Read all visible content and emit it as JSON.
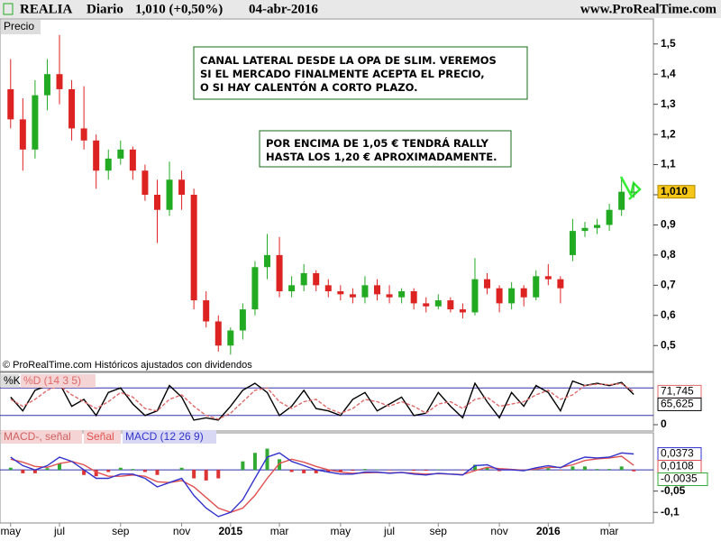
{
  "header": {
    "symbol": "REALIA",
    "period": "Diario",
    "price": "1,010 (+0,50%)",
    "date": "04-abr-2016",
    "site": "www.ProRealTime.com"
  },
  "chart_data": [
    {
      "type": "candlestick",
      "title": "Precio",
      "footer": "© ProRealTime.com  Históricos ajustados con dividendos",
      "annotations": [
        [
          "CANAL LATERAL DESDE LA OPA DE SLIM. VEREMOS",
          "SI EL MERCADO FINALMENTE ACEPTA EL PRECIO,",
          "O SI HAY CALENTÓN A CORTO PLAZO."
        ],
        [
          "POR ENCIMA DE 1,05 € TENDRÁ RALLY",
          "HASTA LOS 1,20 € APROXIMADAMENTE."
        ]
      ],
      "categories": [
        "may",
        null,
        null,
        null,
        "jul",
        null,
        null,
        null,
        null,
        "sep",
        null,
        null,
        null,
        null,
        "nov",
        null,
        null,
        null,
        "2015",
        null,
        null,
        null,
        "mar",
        null,
        null,
        null,
        null,
        "may",
        null,
        null,
        null,
        "jul",
        null,
        null,
        null,
        "sep",
        null,
        null,
        null,
        null,
        "nov",
        null,
        null,
        null,
        "2016",
        null,
        null,
        null,
        null,
        "mar",
        null,
        null
      ],
      "open": [
        1.35,
        1.25,
        1.15,
        1.33,
        1.4,
        1.35,
        1.22,
        1.18,
        1.08,
        1.12,
        1.15,
        1.08,
        1.0,
        0.95,
        1.05,
        1.0,
        0.65,
        0.58,
        0.5,
        0.55,
        0.62,
        0.76,
        0.8,
        0.68,
        0.7,
        0.74,
        0.7,
        0.68,
        0.67,
        0.66,
        0.7,
        0.67,
        0.66,
        0.68,
        0.64,
        0.63,
        0.65,
        0.62,
        0.61,
        0.72,
        0.69,
        0.64,
        0.69,
        0.66,
        0.73,
        0.72,
        0.8,
        0.88,
        0.89,
        0.9,
        0.95,
        1.01
      ],
      "high": [
        1.45,
        1.32,
        1.38,
        1.45,
        1.53,
        1.38,
        1.36,
        1.2,
        1.15,
        1.18,
        1.16,
        1.1,
        1.05,
        1.11,
        1.08,
        1.02,
        0.68,
        0.6,
        0.56,
        0.64,
        0.78,
        0.87,
        0.86,
        0.73,
        0.77,
        0.75,
        0.72,
        0.7,
        0.69,
        0.73,
        0.72,
        0.7,
        0.69,
        0.69,
        0.66,
        0.67,
        0.66,
        0.64,
        0.79,
        0.74,
        0.7,
        0.71,
        0.7,
        0.75,
        0.77,
        0.73,
        0.92,
        0.91,
        0.92,
        0.97,
        1.05,
        1.04
      ],
      "low": [
        1.22,
        1.08,
        1.12,
        1.28,
        1.3,
        1.18,
        1.15,
        1.02,
        1.05,
        1.1,
        1.05,
        0.98,
        0.84,
        0.93,
        0.95,
        0.62,
        0.56,
        0.48,
        0.47,
        0.52,
        0.6,
        0.72,
        0.66,
        0.66,
        0.68,
        0.68,
        0.66,
        0.65,
        0.64,
        0.64,
        0.65,
        0.64,
        0.64,
        0.62,
        0.61,
        0.62,
        0.61,
        0.59,
        0.6,
        0.67,
        0.61,
        0.62,
        0.63,
        0.65,
        0.7,
        0.64,
        0.78,
        0.86,
        0.87,
        0.88,
        0.93,
        0.99
      ],
      "close": [
        1.25,
        1.15,
        1.33,
        1.4,
        1.35,
        1.22,
        1.18,
        1.08,
        1.12,
        1.15,
        1.08,
        1.0,
        0.95,
        1.05,
        1.0,
        0.65,
        0.58,
        0.5,
        0.55,
        0.62,
        0.76,
        0.8,
        0.68,
        0.7,
        0.74,
        0.7,
        0.68,
        0.67,
        0.66,
        0.7,
        0.67,
        0.66,
        0.68,
        0.64,
        0.63,
        0.65,
        0.62,
        0.61,
        0.72,
        0.69,
        0.64,
        0.69,
        0.66,
        0.73,
        0.72,
        0.69,
        0.88,
        0.89,
        0.9,
        0.95,
        1.01,
        1.01
      ],
      "close_labels": [
        null,
        null,
        null,
        null,
        null,
        null,
        null,
        null,
        null,
        null,
        null,
        null,
        null,
        null,
        null,
        null,
        null,
        null,
        null,
        null,
        null,
        null,
        null,
        null,
        null,
        null,
        null,
        null,
        null,
        null,
        null,
        null,
        null,
        null,
        null,
        null,
        null,
        null,
        null,
        null,
        null,
        null,
        null,
        null,
        null,
        null,
        null,
        null,
        null,
        null,
        null,
        "1,010"
      ],
      "up_color": "#22aa22",
      "down_color": "#dd2222",
      "label_color": "#f5c518",
      "ylim": [
        0.42,
        1.58
      ],
      "yticks": [
        {
          "value": 0.5,
          "label": "0,5"
        },
        {
          "value": 0.6,
          "label": "0,6"
        },
        {
          "value": 0.7,
          "label": "0,7"
        },
        {
          "value": 0.8,
          "label": "0,8"
        },
        {
          "value": 0.9,
          "label": "0,9"
        },
        {
          "value": 1.0,
          "label": "1"
        },
        {
          "value": 1.1,
          "label": "1,1"
        },
        {
          "value": 1.2,
          "label": "1,2"
        },
        {
          "value": 1.3,
          "label": "1,3"
        },
        {
          "value": 1.4,
          "label": "1,4"
        },
        {
          "value": 1.5,
          "label": "1,5"
        }
      ]
    },
    {
      "type": "line",
      "ylim": [
        0,
        100
      ],
      "yticks": [
        0
      ],
      "levels": [
        80,
        20
      ],
      "level_color": "#3333aa",
      "series": [
        {
          "name": "%K",
          "color": "#000000",
          "values": [
            60,
            30,
            75,
            85,
            90,
            40,
            55,
            20,
            70,
            80,
            45,
            20,
            30,
            85,
            60,
            10,
            15,
            10,
            40,
            75,
            90,
            70,
            20,
            40,
            75,
            35,
            30,
            20,
            55,
            70,
            30,
            45,
            60,
            20,
            25,
            70,
            40,
            15,
            90,
            50,
            15,
            70,
            40,
            85,
            70,
            30,
            95,
            85,
            90,
            85,
            92,
            65.625
          ],
          "value_labels": [
            null,
            null,
            null,
            null,
            null,
            null,
            null,
            null,
            null,
            null,
            null,
            null,
            null,
            null,
            null,
            null,
            null,
            null,
            null,
            null,
            null,
            null,
            null,
            null,
            null,
            null,
            null,
            null,
            null,
            null,
            null,
            null,
            null,
            null,
            null,
            null,
            null,
            null,
            null,
            null,
            null,
            null,
            null,
            null,
            null,
            null,
            null,
            null,
            null,
            null,
            null,
            "65,625"
          ]
        },
        {
          "name": "%D (14 3 5)",
          "color": "#e06a6a",
          "dashed": true,
          "values": [
            55,
            40,
            55,
            75,
            85,
            65,
            50,
            35,
            50,
            70,
            60,
            35,
            30,
            55,
            65,
            40,
            20,
            12,
            25,
            50,
            75,
            80,
            50,
            35,
            50,
            55,
            35,
            25,
            35,
            55,
            50,
            40,
            50,
            40,
            25,
            45,
            50,
            35,
            55,
            60,
            40,
            45,
            50,
            65,
            75,
            55,
            65,
            85,
            88,
            87,
            89,
            71.745
          ],
          "value_labels": [
            null,
            null,
            null,
            null,
            null,
            null,
            null,
            null,
            null,
            null,
            null,
            null,
            null,
            null,
            null,
            null,
            null,
            null,
            null,
            null,
            null,
            null,
            null,
            null,
            null,
            null,
            null,
            null,
            null,
            null,
            null,
            null,
            null,
            null,
            null,
            null,
            null,
            null,
            null,
            null,
            null,
            null,
            null,
            null,
            null,
            null,
            null,
            null,
            null,
            null,
            null,
            "71,745"
          ]
        }
      ]
    },
    {
      "type": "line",
      "ylim": [
        -0.125,
        0.083
      ],
      "yticks": [
        {
          "value": -0.05,
          "label": "-0,05"
        },
        {
          "value": -0.1,
          "label": "-0,1"
        }
      ],
      "zero_line": true,
      "series": [
        {
          "name": "MACD-, señal",
          "type": "bar",
          "color": "#33aa33",
          "negative_color": "#dd3333",
          "values": [
            0.005,
            -0.008,
            -0.008,
            0.004,
            0.015,
            0,
            -0.012,
            -0.015,
            -0.005,
            0.005,
            0.002,
            -0.005,
            -0.012,
            0,
            0.005,
            -0.02,
            -0.025,
            -0.02,
            0,
            0.02,
            0.04,
            0.05,
            0.025,
            -0.005,
            -0.008,
            -0.008,
            -0.005,
            -0.005,
            -0.002,
            0.002,
            0.001,
            -0.001,
            0,
            -0.002,
            -0.002,
            0.001,
            0,
            -0.001,
            0.012,
            0.006,
            -0.003,
            -0.001,
            -0.001,
            0.003,
            0.004,
            -0.001,
            0.008,
            0.008,
            0.002,
            0.002,
            0.008,
            -0.0035
          ],
          "value_labels": [
            null,
            null,
            null,
            null,
            null,
            null,
            null,
            null,
            null,
            null,
            null,
            null,
            null,
            null,
            null,
            null,
            null,
            null,
            null,
            null,
            null,
            null,
            null,
            null,
            null,
            null,
            null,
            null,
            null,
            null,
            null,
            null,
            null,
            null,
            null,
            null,
            null,
            null,
            null,
            null,
            null,
            null,
            null,
            null,
            null,
            null,
            null,
            null,
            null,
            null,
            null,
            "-0,0035"
          ]
        },
        {
          "name": "Señal",
          "color": "#e05050",
          "values": [
            0.025,
            0.018,
            0.008,
            0.006,
            0.015,
            0.02,
            0.012,
            -0.005,
            -0.015,
            -0.015,
            -0.012,
            -0.015,
            -0.028,
            -0.03,
            -0.025,
            -0.04,
            -0.065,
            -0.09,
            -0.1,
            -0.09,
            -0.06,
            -0.02,
            0.015,
            0.025,
            0.018,
            0.008,
            0,
            -0.005,
            -0.008,
            -0.007,
            -0.006,
            -0.007,
            -0.006,
            -0.008,
            -0.01,
            -0.009,
            -0.01,
            -0.011,
            -0.002,
            0.006,
            0.003,
            0.001,
            -0.001,
            0.002,
            0.006,
            0.006,
            0.012,
            0.022,
            0.026,
            0.028,
            0.032,
            0.0108
          ],
          "value_labels": [
            null,
            null,
            null,
            null,
            null,
            null,
            null,
            null,
            null,
            null,
            null,
            null,
            null,
            null,
            null,
            null,
            null,
            null,
            null,
            null,
            null,
            null,
            null,
            null,
            null,
            null,
            null,
            null,
            null,
            null,
            null,
            null,
            null,
            null,
            null,
            null,
            null,
            null,
            null,
            null,
            null,
            null,
            null,
            null,
            null,
            null,
            null,
            null,
            null,
            null,
            null,
            "0,0108"
          ]
        },
        {
          "name": "MACD (12 26 9)",
          "color": "#3333cc",
          "values": [
            0.03,
            0.01,
            0,
            0.01,
            0.03,
            0.02,
            0,
            -0.02,
            -0.02,
            -0.01,
            -0.01,
            -0.02,
            -0.04,
            -0.03,
            -0.02,
            -0.06,
            -0.09,
            -0.11,
            -0.1,
            -0.07,
            -0.02,
            0.03,
            0.04,
            0.02,
            0.01,
            0,
            -0.005,
            -0.01,
            -0.01,
            -0.005,
            -0.005,
            -0.008,
            -0.006,
            -0.01,
            -0.012,
            -0.008,
            -0.01,
            -0.012,
            0.01,
            0.012,
            0,
            0,
            -0.002,
            0.005,
            0.01,
            0.005,
            0.02,
            0.03,
            0.028,
            0.03,
            0.04,
            0.0373
          ],
          "value_labels": [
            null,
            null,
            null,
            null,
            null,
            null,
            null,
            null,
            null,
            null,
            null,
            null,
            null,
            null,
            null,
            null,
            null,
            null,
            null,
            null,
            null,
            null,
            null,
            null,
            null,
            null,
            null,
            null,
            null,
            null,
            null,
            null,
            null,
            null,
            null,
            null,
            null,
            null,
            null,
            null,
            null,
            null,
            null,
            null,
            null,
            null,
            null,
            null,
            null,
            null,
            null,
            "0,0373"
          ]
        }
      ]
    }
  ]
}
